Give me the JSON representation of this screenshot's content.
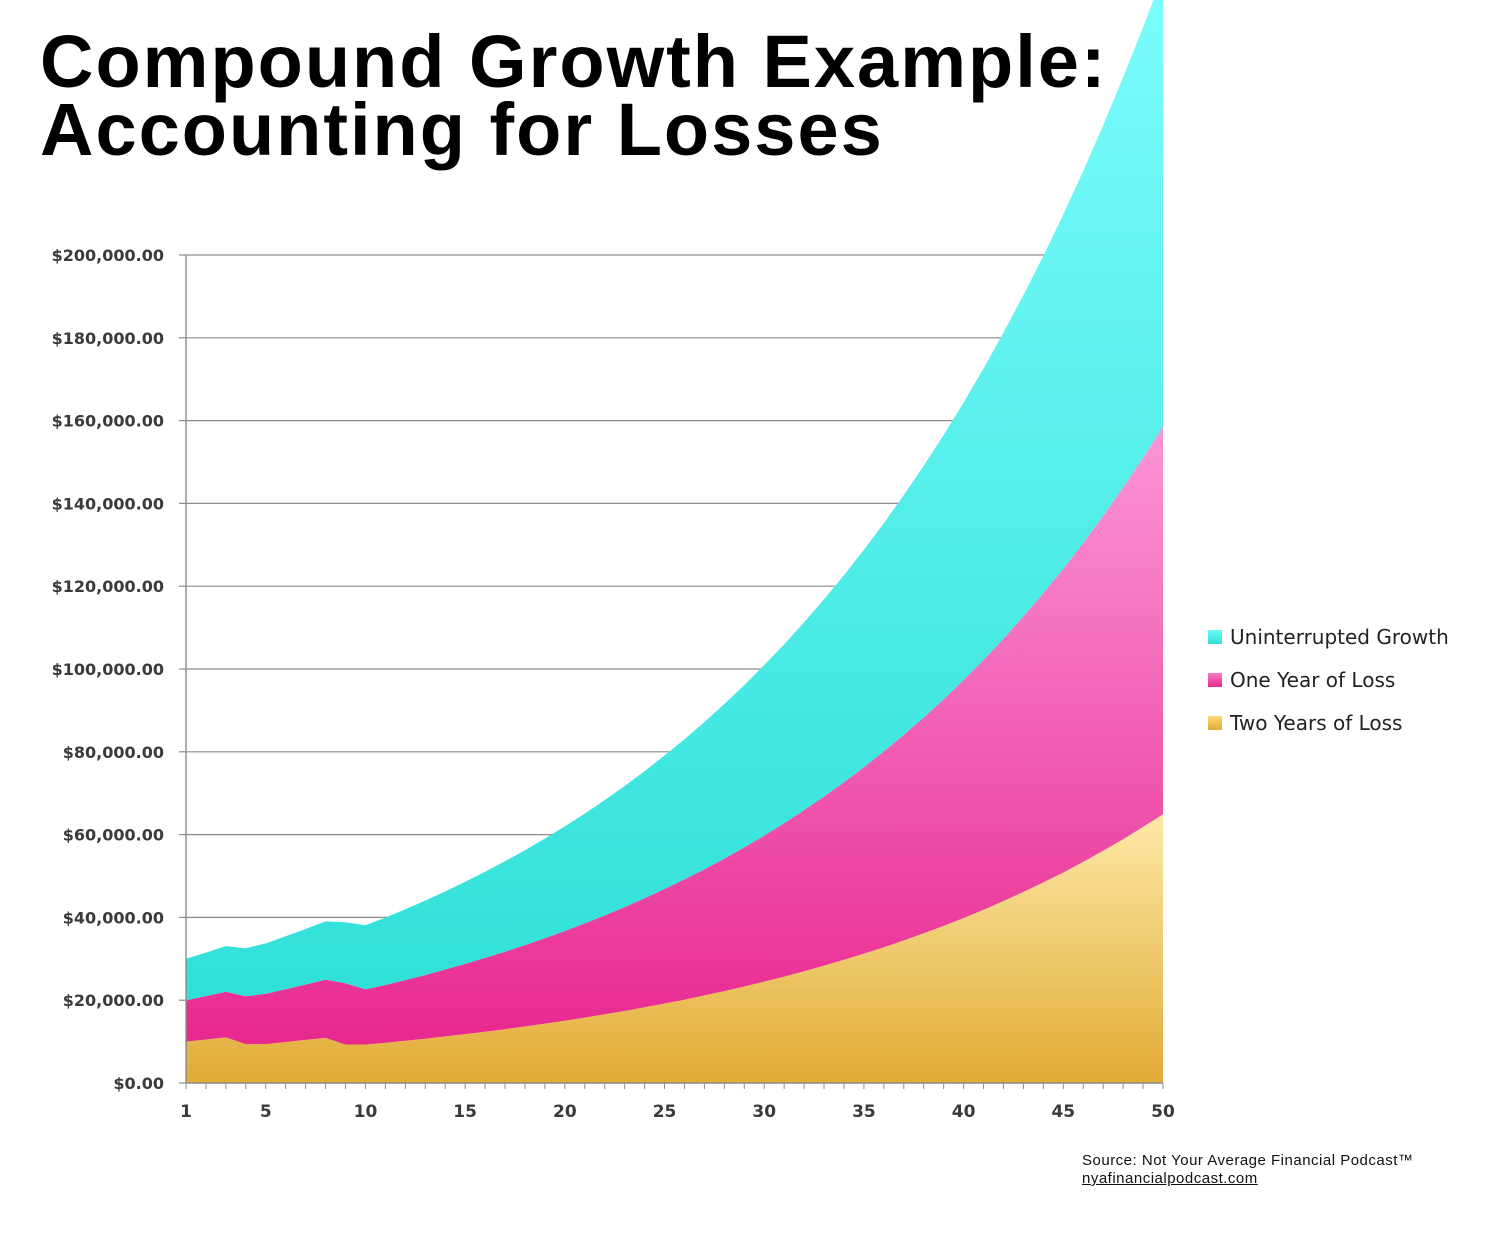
{
  "title_line1": "Compound Growth Example:",
  "title_line2": "Accounting for Losses",
  "source_text": "Source: Not Your Average Financial Podcast™",
  "source_url": "nyafinancialpodcast.com",
  "chart_data": {
    "type": "area",
    "xlabel": "",
    "ylabel": "",
    "x_ticks": [
      1,
      5,
      10,
      15,
      20,
      25,
      30,
      35,
      40,
      45,
      50
    ],
    "y_ticks": [
      "$0.00",
      "$20,000.00",
      "$40,000.00",
      "$60,000.00",
      "$80,000.00",
      "$100,000.00",
      "$120,000.00",
      "$140,000.00",
      "$160,000.00",
      "$180,000.00",
      "$200,000.00"
    ],
    "ylim": [
      0,
      200000
    ],
    "xlim": [
      1,
      50
    ],
    "grid": true,
    "legend_position": "right",
    "series": [
      {
        "name": "Uninterrupted Growth",
        "color": "#4ff5ee",
        "values": [
          10000,
          10500,
          11025,
          11576,
          12155,
          12763,
          13401,
          14071,
          14775,
          15513,
          16289,
          17103,
          17959,
          18856,
          19799,
          20789,
          21829,
          22920,
          24066,
          25270,
          26533,
          27860,
          29253,
          30715,
          32251,
          33864,
          35557,
          37335,
          39201,
          41161,
          43219,
          45380,
          47649,
          50032,
          52533,
          55160,
          57918,
          60814,
          63855,
          67048,
          70400,
          73920,
          77616,
          81497,
          85572,
          89850,
          94343,
          99060,
          104013,
          109213
        ]
      },
      {
        "name": "One Year of Loss",
        "color": "#f23ca0",
        "values": [
          10000,
          10500,
          11025,
          11576,
          12155,
          12763,
          13401,
          14071,
          14775,
          13300,
          13965,
          14663,
          15396,
          16166,
          16975,
          17823,
          18715,
          19650,
          20633,
          21665,
          22748,
          23885,
          25080,
          26334,
          27650,
          29033,
          30485,
          32009,
          33609,
          35290,
          37054,
          38907,
          40852,
          42895,
          45040,
          47292,
          49656,
          52139,
          54746,
          57484,
          60358,
          63376,
          66545,
          69872,
          73366,
          77034,
          80886,
          84930,
          89177,
          93636
        ]
      },
      {
        "name": "Two Years of Loss",
        "color": "#f0bd3c",
        "values": [
          10000,
          10500,
          11025,
          9400,
          9400,
          9900,
          10400,
          10900,
          9300,
          9300,
          9700,
          10200,
          10700,
          11250,
          11800,
          12400,
          13000,
          13650,
          14350,
          15050,
          15800,
          16600,
          17400,
          18300,
          19200,
          20150,
          21150,
          22200,
          23300,
          24500,
          25700,
          27000,
          28350,
          29750,
          31250,
          32800,
          34450,
          36150,
          37950,
          39850,
          41850,
          43950,
          46150,
          48450,
          50850,
          53400,
          56100,
          58900,
          61850,
          64900
        ]
      }
    ]
  }
}
